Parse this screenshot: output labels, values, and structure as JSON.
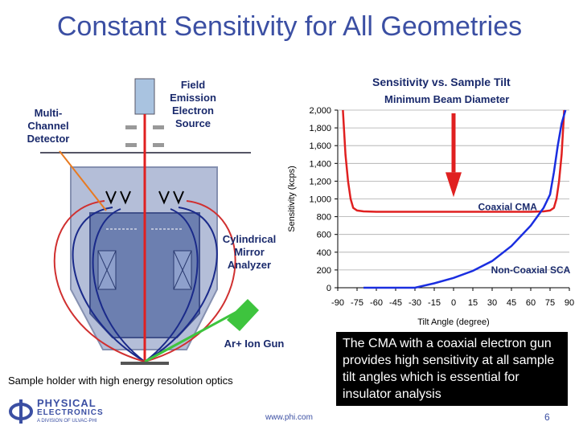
{
  "title": "Constant Sensitivity for All Geometries",
  "diagram": {
    "field_emission": "Field\nEmission\nElectron\nSource",
    "multichannel": "Multi-\nChannel\nDetector",
    "cma": "Cylindrical\nMirror\nAnalyzer",
    "ion_gun": "Ar+ Ion Gun",
    "sample_holder": "Sample holder with high energy resolution optics"
  },
  "chart_data": {
    "type": "line",
    "title": "Sensitivity vs. Sample Tilt",
    "subtitle": "Minimum Beam Diameter",
    "xlabel": "Tilt Angle (degree)",
    "ylabel": "Sensitivity (kcps)",
    "xlim": [
      -90,
      90
    ],
    "ylim": [
      0,
      2000
    ],
    "x_ticks": [
      "-90",
      "-75",
      "-60",
      "-45",
      "-30",
      "-15",
      "0",
      "15",
      "30",
      "45",
      "60",
      "75",
      "90"
    ],
    "y_ticks": [
      "0",
      "200",
      "400",
      "600",
      "800",
      "1,000",
      "1,200",
      "1,400",
      "1,600",
      "1,800",
      "2,000"
    ],
    "series": [
      {
        "name": "Coaxial CMA",
        "color": "#e02020",
        "x": [
          -86,
          -84,
          -82,
          -80,
          -78,
          -75,
          -70,
          -60,
          -45,
          -30,
          -15,
          0,
          15,
          30,
          45,
          60,
          70,
          75,
          78,
          80,
          82,
          84,
          86
        ],
        "y": [
          2000,
          1500,
          1200,
          1000,
          900,
          870,
          860,
          855,
          855,
          855,
          855,
          855,
          855,
          855,
          855,
          855,
          860,
          870,
          900,
          1000,
          1200,
          1500,
          2000
        ]
      },
      {
        "name": "Non-Coaxial SCA",
        "color": "#1a2ee0",
        "x": [
          -70,
          -30,
          -15,
          0,
          15,
          30,
          45,
          60,
          70,
          75,
          78,
          81,
          84,
          87
        ],
        "y": [
          0,
          0,
          50,
          110,
          190,
          300,
          470,
          700,
          900,
          1050,
          1300,
          1600,
          1850,
          2000
        ]
      }
    ],
    "annotations": [
      "Coaxial CMA",
      "Non-Coaxial SCA"
    ]
  },
  "callout": "The CMA with a coaxial electron gun provides high sensitivity at all sample tilt angles which is essential for insulator analysis",
  "footer": {
    "logo_line1": "PHYSICAL",
    "logo_line2": "ELECTRONICS",
    "logo_line3": "A DIVISION OF ULVAC-PHI",
    "url": "www.phi.com",
    "page": "6"
  },
  "colors": {
    "title": "#3b4fa3",
    "navy": "#1a2a6c",
    "analyzer": "#9ea9c7",
    "beam": "#e02020",
    "ion_gun": "#3ec43e"
  }
}
